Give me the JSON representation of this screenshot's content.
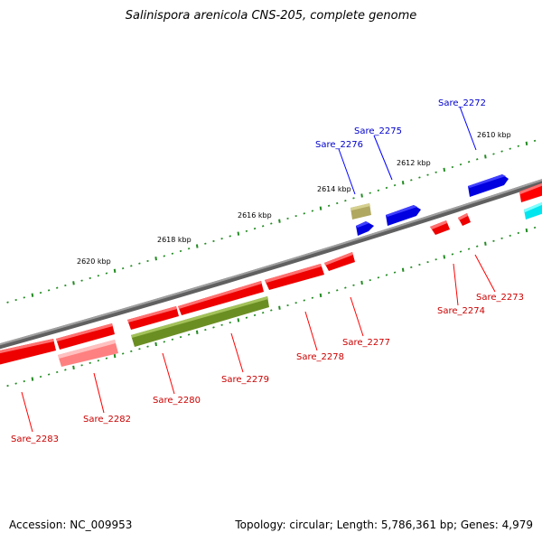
{
  "title": "Salinispora arenicola CNS-205, complete genome",
  "footer": {
    "accession": "Accession: NC_009953",
    "summary": "Topology: circular; Length: 5,786,361 bp; Genes: 4,979"
  },
  "colors": {
    "forward_cds": "#0000ff",
    "reverse_cds": "#ff0000",
    "reverse_cds_light": "#ff8080",
    "olive_feature": "#6b8e23",
    "khaki_feature": "#bdb76b",
    "cyan_feature": "#00e5ee",
    "backbone": "#808080",
    "ticks": "#228b22"
  },
  "kbp_labels": [
    "2610 kbp",
    "2612 kbp",
    "2614 kbp",
    "2616 kbp",
    "2618 kbp",
    "2620 kbp"
  ],
  "genes": [
    {
      "id": "Sare_2272",
      "strand": "forward"
    },
    {
      "id": "Sare_2275",
      "strand": "forward"
    },
    {
      "id": "Sare_2276",
      "strand": "forward"
    },
    {
      "id": "Sare_2273",
      "strand": "reverse"
    },
    {
      "id": "Sare_2274",
      "strand": "reverse"
    },
    {
      "id": "Sare_2277",
      "strand": "reverse"
    },
    {
      "id": "Sare_2278",
      "strand": "reverse"
    },
    {
      "id": "Sare_2279",
      "strand": "reverse"
    },
    {
      "id": "Sare_2280",
      "strand": "reverse"
    },
    {
      "id": "Sare_2282",
      "strand": "reverse"
    },
    {
      "id": "Sare_2283",
      "strand": "reverse"
    }
  ]
}
